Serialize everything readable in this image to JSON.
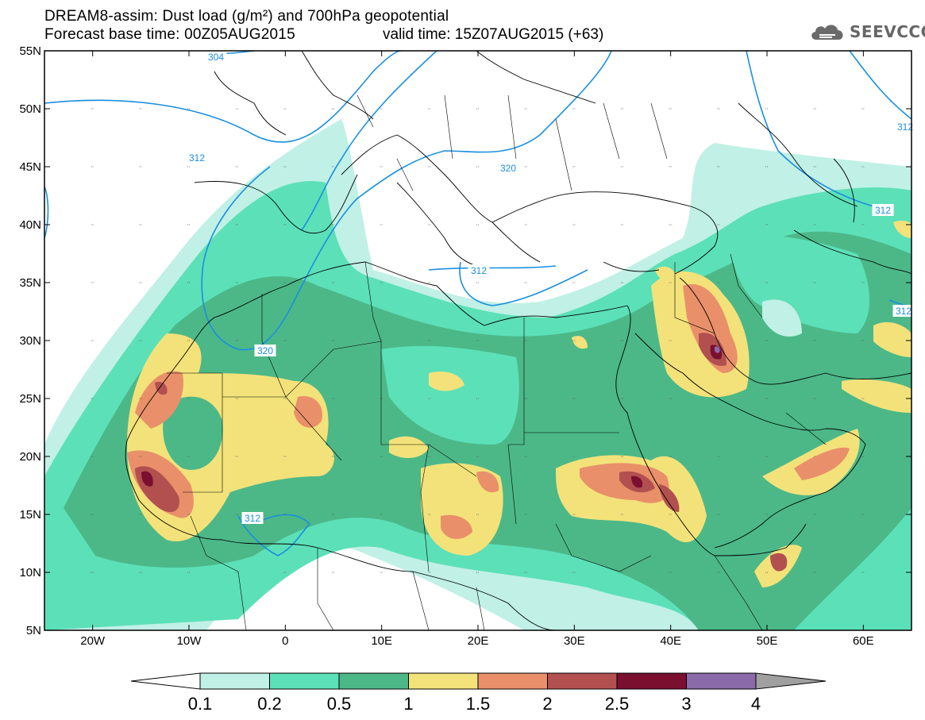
{
  "title": {
    "line1": "DREAM8-assim: Dust load (g/m²) and 700hPa geopotential",
    "line2_left": "Forecast base time: 00Z05AUG2015",
    "line2_right": "valid time: 15Z07AUG2015 (+63)"
  },
  "logo": {
    "text": "SEEVCCC",
    "icon": "cloud-logo-icon"
  },
  "map": {
    "lon_range": [
      -25,
      65
    ],
    "lat_range": [
      5,
      55
    ],
    "lat_ticks": [
      "5N",
      "10N",
      "15N",
      "20N",
      "25N",
      "30N",
      "35N",
      "40N",
      "45N",
      "50N",
      "55N"
    ],
    "lon_ticks": [
      "20W",
      "10W",
      "0",
      "10E",
      "20E",
      "30E",
      "40E",
      "50E",
      "60E"
    ],
    "contour_labels": [
      "312",
      "312",
      "320",
      "320",
      "312",
      "312",
      "312",
      "312",
      "304"
    ]
  },
  "colorbar": {
    "labels": [
      "0.1",
      "0.2",
      "0.5",
      "1",
      "1.5",
      "2",
      "2.5",
      "3",
      "4"
    ],
    "colors": [
      "#c0f0e6",
      "#5ce0b8",
      "#4cb888",
      "#f3e27a",
      "#e9906a",
      "#b25050",
      "#7a0f30",
      "#8a6aa8"
    ],
    "under_color": "#ffffff",
    "over_color": "#a0a0a0"
  }
}
